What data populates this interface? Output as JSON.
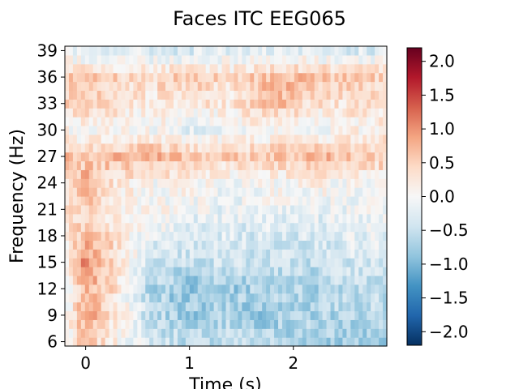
{
  "chart_data": {
    "type": "heatmap",
    "title": "Faces ITC EEG065",
    "xlabel": "Time (s)",
    "ylabel": "Frequency (Hz)",
    "xlim": [
      -0.2,
      2.9
    ],
    "ylim": [
      5.5,
      39.5
    ],
    "x_ticks": [
      0,
      1,
      2
    ],
    "x_tick_labels": [
      "0",
      "1",
      "2"
    ],
    "y_ticks": [
      6,
      9,
      12,
      15,
      18,
      21,
      24,
      27,
      30,
      33,
      36,
      39
    ],
    "y_tick_labels": [
      "6",
      "9",
      "12",
      "15",
      "18",
      "21",
      "24",
      "27",
      "30",
      "33",
      "36",
      "39"
    ],
    "colorbar": {
      "colormap": "RdBu_r",
      "vmin": -2.2,
      "vmax": 2.2,
      "ticks": [
        2.0,
        1.5,
        1.0,
        0.5,
        0.0,
        -0.5,
        -1.0,
        -1.5,
        -2.0
      ],
      "tick_labels": [
        "2.0",
        "1.5",
        "1.0",
        "0.5",
        "0.0",
        "−0.5",
        "−1.0",
        "−1.5",
        "−2.0"
      ]
    },
    "frequencies": [
      6,
      7,
      8,
      9,
      10,
      11,
      12,
      13,
      14,
      15,
      16,
      17,
      18,
      19,
      20,
      21,
      22,
      23,
      24,
      25,
      26,
      27,
      28,
      29,
      30,
      31,
      32,
      33,
      34,
      35,
      36,
      37,
      38,
      39
    ],
    "time_bins": [
      -0.2,
      0.0,
      0.3,
      0.6,
      1.0,
      1.4,
      1.8,
      2.2,
      2.6
    ],
    "band_means": [
      {
        "freq": 6,
        "values": [
          0.0,
          0.6,
          0.1,
          -0.3,
          -0.6,
          -0.5,
          -0.6,
          -0.7,
          -0.8
        ]
      },
      {
        "freq": 9,
        "values": [
          -0.1,
          0.9,
          0.2,
          -0.5,
          -0.8,
          -0.7,
          -0.8,
          -0.7,
          -0.6
        ]
      },
      {
        "freq": 12,
        "values": [
          -0.1,
          0.8,
          0.3,
          -0.6,
          -0.9,
          -0.8,
          -0.6,
          -0.7,
          -0.5
        ]
      },
      {
        "freq": 15,
        "values": [
          0.0,
          1.1,
          0.4,
          -0.4,
          -0.5,
          -0.4,
          -0.5,
          -0.5,
          -0.4
        ]
      },
      {
        "freq": 18,
        "values": [
          0.1,
          0.7,
          0.3,
          -0.2,
          -0.3,
          -0.3,
          -0.4,
          -0.3,
          -0.2
        ]
      },
      {
        "freq": 21,
        "values": [
          0.2,
          0.5,
          0.2,
          0.1,
          -0.1,
          -0.2,
          -0.1,
          -0.2,
          -0.1
        ]
      },
      {
        "freq": 24,
        "values": [
          0.3,
          0.8,
          0.2,
          0.0,
          0.1,
          -0.1,
          0.0,
          0.1,
          0.0
        ]
      },
      {
        "freq": 27,
        "values": [
          0.6,
          0.5,
          0.7,
          0.8,
          0.6,
          0.5,
          0.6,
          0.7,
          0.6
        ]
      },
      {
        "freq": 30,
        "values": [
          0.1,
          0.0,
          0.1,
          0.0,
          -0.2,
          -0.1,
          0.0,
          -0.1,
          0.1
        ]
      },
      {
        "freq": 33,
        "values": [
          0.4,
          0.5,
          0.3,
          0.2,
          0.3,
          0.2,
          0.7,
          0.3,
          0.3
        ]
      },
      {
        "freq": 36,
        "values": [
          0.6,
          0.6,
          0.5,
          0.4,
          0.5,
          0.4,
          0.7,
          0.7,
          0.5
        ]
      },
      {
        "freq": 39,
        "values": [
          -0.2,
          -0.3,
          -0.2,
          -0.3,
          -0.3,
          -0.2,
          -0.3,
          -0.3,
          -0.3
        ]
      }
    ]
  }
}
